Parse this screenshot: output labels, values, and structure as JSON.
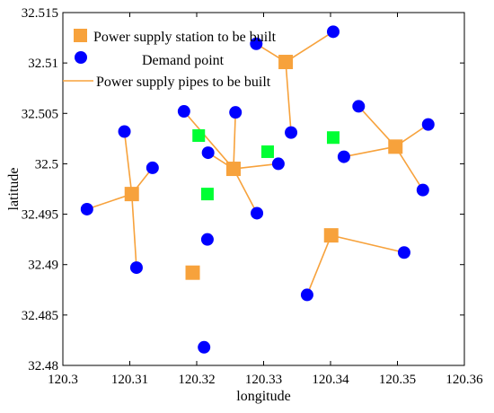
{
  "chart_data": {
    "type": "scatter",
    "xlabel": "longitude",
    "ylabel": "latitude",
    "xlim": [
      120.3,
      120.36
    ],
    "ylim": [
      32.48,
      32.515
    ],
    "xticks": [
      "120.3",
      "120.31",
      "120.32",
      "120.33",
      "120.34",
      "120.35",
      "120.36"
    ],
    "yticks": [
      "32.48",
      "32.485",
      "32.49",
      "32.495",
      "32.5",
      "32.505",
      "32.51",
      "32.515"
    ],
    "grid": false,
    "legend_position": "top-left",
    "legend": [
      {
        "label": "Power supply station to be built",
        "marker": "square",
        "color": "#F7A23C"
      },
      {
        "label": "Demand point",
        "marker": "circle",
        "color": "#0000FF"
      },
      {
        "label": "Power supply pipes to be built",
        "marker": "line",
        "color": "#F7A23C"
      }
    ],
    "colors": {
      "station": "#F7A23C",
      "demand": "#0000FF",
      "existing": "#00FF33",
      "pipe": "#F7A23C"
    },
    "stations": [
      {
        "x": 120.3333,
        "y": 32.5101
      },
      {
        "x": 120.3255,
        "y": 32.4995
      },
      {
        "x": 120.3497,
        "y": 32.5017
      },
      {
        "x": 120.3103,
        "y": 32.497
      },
      {
        "x": 120.3401,
        "y": 32.4929
      },
      {
        "x": 120.3194,
        "y": 32.4892
      }
    ],
    "existing_stations": [
      {
        "x": 120.3203,
        "y": 32.5028
      },
      {
        "x": 120.3306,
        "y": 32.5012
      },
      {
        "x": 120.3404,
        "y": 32.5026
      },
      {
        "x": 120.3216,
        "y": 32.497
      }
    ],
    "demand_points": [
      {
        "x": 120.3289,
        "y": 32.5119
      },
      {
        "x": 120.3404,
        "y": 32.5131
      },
      {
        "x": 120.3341,
        "y": 32.5031
      },
      {
        "x": 120.3181,
        "y": 32.5052
      },
      {
        "x": 120.3258,
        "y": 32.5051
      },
      {
        "x": 120.3217,
        "y": 32.5011
      },
      {
        "x": 120.3322,
        "y": 32.5
      },
      {
        "x": 120.329,
        "y": 32.4951
      },
      {
        "x": 120.3442,
        "y": 32.5057
      },
      {
        "x": 120.3546,
        "y": 32.5039
      },
      {
        "x": 120.342,
        "y": 32.5007
      },
      {
        "x": 120.3538,
        "y": 32.4974
      },
      {
        "x": 120.3092,
        "y": 32.5032
      },
      {
        "x": 120.3134,
        "y": 32.4996
      },
      {
        "x": 120.3036,
        "y": 32.4955
      },
      {
        "x": 120.311,
        "y": 32.4897
      },
      {
        "x": 120.351,
        "y": 32.4912
      },
      {
        "x": 120.3365,
        "y": 32.487
      },
      {
        "x": 120.3216,
        "y": 32.4925
      },
      {
        "x": 120.3211,
        "y": 32.4818
      }
    ],
    "pipes": [
      {
        "from": 0,
        "to": [
          0,
          1,
          2
        ]
      },
      {
        "from": 1,
        "to": [
          3,
          4,
          5,
          6,
          7
        ]
      },
      {
        "from": 2,
        "to": [
          8,
          9,
          10,
          11
        ]
      },
      {
        "from": 3,
        "to": [
          12,
          13,
          14,
          15
        ]
      },
      {
        "from": 4,
        "to": [
          16,
          17
        ]
      }
    ]
  }
}
